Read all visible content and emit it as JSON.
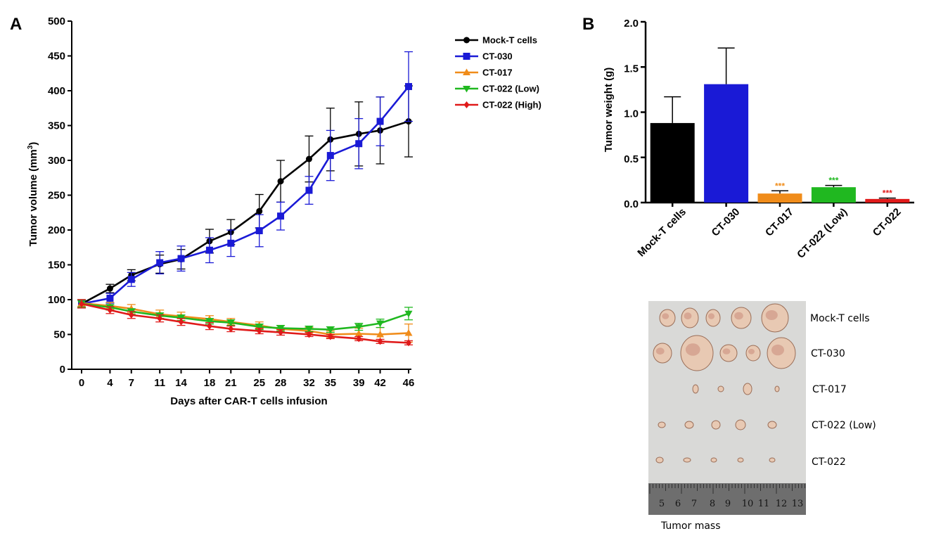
{
  "colors": {
    "mock": "#000000",
    "ct030": "#1a1ad6",
    "ct017": "#f08c1a",
    "ct022low": "#20b820",
    "ct022high": "#e01a1a",
    "photo_bg": "#d9d9d7",
    "ruler": "#6e6e6e"
  },
  "chart_data": [
    {
      "panel": "A",
      "type": "line",
      "ylabel_main": "Tumor volume (mm",
      "ylabel_sup": "3",
      "ylabel_end": ")",
      "xlabel": "Days after CAR-T cells infusion",
      "x": [
        0,
        4,
        7,
        11,
        14,
        18,
        21,
        25,
        28,
        32,
        35,
        39,
        42,
        46
      ],
      "xticks": [
        "0",
        "4",
        "7",
        "11",
        "14",
        "18",
        "21",
        "25",
        "28",
        "32",
        "35",
        "39",
        "42",
        "46"
      ],
      "ylim": [
        0,
        500
      ],
      "yticks": [
        0,
        50,
        100,
        150,
        200,
        250,
        300,
        350,
        400,
        450,
        500
      ],
      "legend_position": "top-right",
      "series": [
        {
          "name": "Mock-T cells",
          "marker": "circle",
          "color_key": "mock",
          "values": [
            94,
            116,
            135,
            151,
            158,
            184,
            197,
            227,
            270,
            302,
            330,
            338,
            343,
            356
          ],
          "errors": [
            6,
            6,
            8,
            13,
            14,
            17,
            18,
            24,
            30,
            33,
            45,
            46,
            48,
            51
          ]
        },
        {
          "name": "CT-030",
          "marker": "square",
          "color_key": "ct030",
          "values": [
            94,
            102,
            129,
            153,
            159,
            171,
            181,
            199,
            220,
            257,
            307,
            324,
            356,
            406
          ],
          "errors": [
            6,
            7,
            10,
            16,
            18,
            18,
            19,
            23,
            20,
            20,
            36,
            36,
            35,
            50
          ]
        },
        {
          "name": "CT-017",
          "marker": "triangle-up",
          "color_key": "ct017",
          "values": [
            95,
            91,
            87,
            79,
            76,
            72,
            68,
            63,
            58,
            55,
            50,
            51,
            50,
            52
          ],
          "errors": [
            5,
            5,
            6,
            6,
            6,
            5,
            5,
            5,
            5,
            5,
            5,
            8,
            10,
            13
          ]
        },
        {
          "name": "CT-022 (Low)",
          "marker": "triangle-down",
          "color_key": "ct022low",
          "values": [
            94,
            89,
            83,
            77,
            74,
            69,
            67,
            61,
            59,
            58,
            57,
            61,
            66,
            80
          ],
          "errors": [
            5,
            4,
            4,
            4,
            4,
            4,
            4,
            4,
            4,
            4,
            4,
            5,
            6,
            9
          ]
        },
        {
          "name": "CT-022 (High)",
          "marker": "diamond",
          "color_key": "ct022high",
          "values": [
            94,
            85,
            78,
            73,
            68,
            62,
            58,
            55,
            53,
            50,
            47,
            44,
            40,
            38
          ],
          "errors": [
            6,
            5,
            5,
            5,
            5,
            5,
            4,
            4,
            4,
            3,
            3,
            3,
            3,
            3
          ]
        }
      ]
    },
    {
      "panel": "B",
      "type": "bar",
      "ylabel": "Tumor weight (g)",
      "ylim": [
        0,
        2.0
      ],
      "yticks": [
        "0.0",
        "0.5",
        "1.0",
        "1.5",
        "2.0"
      ],
      "ytick_values": [
        0,
        0.5,
        1.0,
        1.5,
        2.0
      ],
      "categories": [
        "Mock-T cells",
        "CT-030",
        "CT-017",
        "CT-022 (Low)",
        "CT-022"
      ],
      "values": [
        0.88,
        1.31,
        0.1,
        0.17,
        0.04
      ],
      "errors": [
        0.29,
        0.4,
        0.03,
        0.02,
        0.01
      ],
      "color_keys": [
        "mock",
        "ct030",
        "ct017",
        "ct022low",
        "ct022high"
      ],
      "significance": [
        "",
        "",
        "***",
        "***",
        "***"
      ]
    }
  ],
  "panel_labels": {
    "a": "A",
    "b": "B"
  },
  "photo": {
    "caption": "Tumor mass",
    "row_labels": [
      "Mock-T cells",
      "CT-030",
      "CT-017",
      "CT-022 (Low)",
      "CT-022"
    ],
    "ruler_numbers": [
      "5",
      "6",
      "7",
      "8",
      "9",
      "10",
      "11",
      "12",
      "13"
    ]
  }
}
